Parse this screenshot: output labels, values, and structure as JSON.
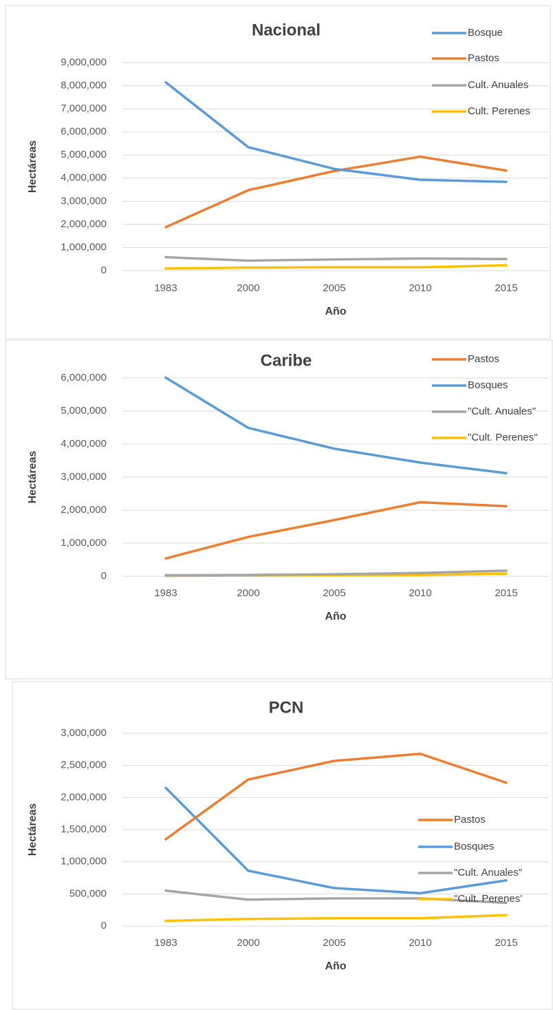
{
  "chart_data": [
    {
      "type": "line",
      "title": "Nacional",
      "x_label": "Año",
      "y_label": "Hectáreas",
      "categories": [
        "1983",
        "2000",
        "2005",
        "2010",
        "2015"
      ],
      "series": [
        {
          "name": "Bosque",
          "color": "#5b9bd5",
          "values": [
            8150000,
            5340000,
            4400000,
            3930000,
            3840000
          ]
        },
        {
          "name": "Pastos",
          "color": "#ed7d31",
          "values": [
            1880000,
            3480000,
            4310000,
            4930000,
            4330000
          ]
        },
        {
          "name": "Cult. Anuales",
          "color": "#a5a5a5",
          "values": [
            580000,
            430000,
            480000,
            520000,
            500000
          ]
        },
        {
          "name": "Cult. Perenes",
          "color": "#ffc000",
          "values": [
            90000,
            130000,
            140000,
            140000,
            230000
          ]
        }
      ],
      "ylim": [
        0,
        9000000
      ],
      "yticks": [
        0,
        {
          "value": 1000000,
          "label": "1,000,000"
        },
        {
          "value": 2000000,
          "label": "2,000,000"
        },
        {
          "value": 3000000,
          "label": "3,000,000"
        },
        {
          "value": 4000000,
          "label": "4,000,000"
        },
        {
          "value": 5000000,
          "label": "5,000,000"
        },
        {
          "value": 6000000,
          "label": "6,000,000"
        },
        {
          "value": 7000000,
          "label": "7,000,000"
        },
        {
          "value": 8000000,
          "label": "8,000,000"
        },
        {
          "value": 9000000,
          "label": "9,000,000"
        }
      ],
      "grid": true,
      "legend": "upper right"
    },
    {
      "type": "line",
      "title": "Caribe",
      "x_label": "Año",
      "y_label": "Hectáreas",
      "categories": [
        "1983",
        "2000",
        "2005",
        "2010",
        "2015"
      ],
      "series": [
        {
          "name": "Pastos",
          "color": "#ed7d31",
          "values": [
            540000,
            1190000,
            1700000,
            2240000,
            2120000
          ]
        },
        {
          "name": "Bosques",
          "color": "#5b9bd5",
          "values": [
            6010000,
            4490000,
            3860000,
            3440000,
            3120000
          ]
        },
        {
          "name": "\"Cult. Anuales\"",
          "color": "#a5a5a5",
          "values": [
            30000,
            40000,
            60000,
            100000,
            170000
          ]
        },
        {
          "name": "\"Cult. Perenes\"",
          "color": "#ffc000",
          "values": [
            10000,
            20000,
            30000,
            40000,
            80000
          ]
        }
      ],
      "ylim": [
        0,
        6000000
      ],
      "yticks": [
        0,
        {
          "value": 1000000,
          "label": "1,000,000"
        },
        {
          "value": 2000000,
          "label": "2,000,000"
        },
        {
          "value": 3000000,
          "label": "3,000,000"
        },
        {
          "value": 4000000,
          "label": "4,000,000"
        },
        {
          "value": 5000000,
          "label": "5,000,000"
        },
        {
          "value": 6000000,
          "label": "6,000,000"
        }
      ],
      "grid": true,
      "legend": "upper right"
    },
    {
      "type": "line",
      "title": "PCN",
      "x_label": "Año",
      "y_label": "Hectáreas",
      "categories": [
        "1983",
        "2000",
        "2005",
        "2010",
        "2015"
      ],
      "series": [
        {
          "name": "Pastos",
          "color": "#ed7d31",
          "values": [
            1350000,
            2280000,
            2570000,
            2680000,
            2230000
          ]
        },
        {
          "name": "Bosques",
          "color": "#5b9bd5",
          "values": [
            2150000,
            860000,
            590000,
            510000,
            710000
          ]
        },
        {
          "name": "\"Cult. Anuales\"",
          "color": "#a5a5a5",
          "values": [
            550000,
            410000,
            430000,
            430000,
            360000
          ]
        },
        {
          "name": "\"Cult. Perenes'",
          "color": "#ffc000",
          "values": [
            80000,
            110000,
            120000,
            120000,
            170000
          ]
        }
      ],
      "ylim": [
        0,
        3000000
      ],
      "yticks": [
        0,
        {
          "value": 500000,
          "label": "500,000"
        },
        {
          "value": 1000000,
          "label": "1,000,000"
        },
        {
          "value": 1500000,
          "label": "1,500,000"
        },
        {
          "value": 2000000,
          "label": "2,000,000"
        },
        {
          "value": 2500000,
          "label": "2,500,000"
        },
        {
          "value": 3000000,
          "label": "3,000,000"
        }
      ],
      "grid": true,
      "legend": "right"
    }
  ]
}
